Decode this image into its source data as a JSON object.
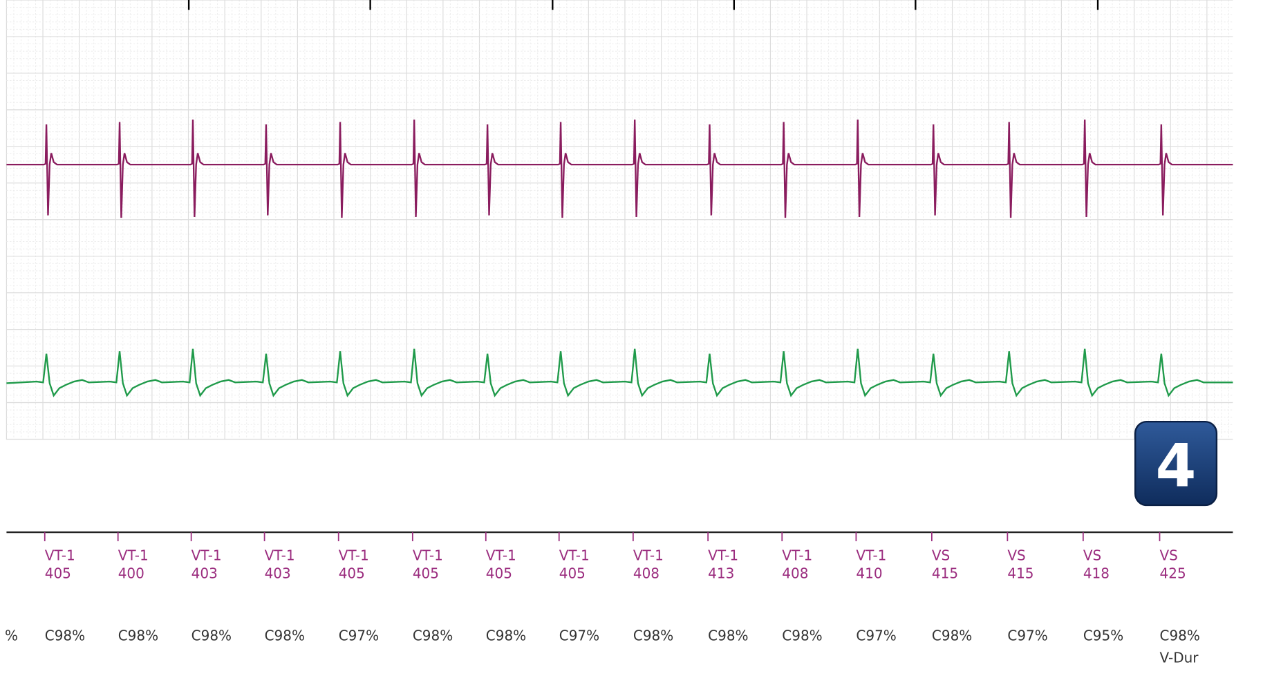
{
  "rhythm_strip": {
    "badge": "4",
    "left_fragment": "%",
    "markers": [
      {
        "label": "VT-1",
        "interval": 405,
        "detail": [
          "C98%"
        ]
      },
      {
        "label": "VT-1",
        "interval": 400,
        "detail": [
          "C98%"
        ]
      },
      {
        "label": "VT-1",
        "interval": 403,
        "detail": [
          "C98%"
        ]
      },
      {
        "label": "VT-1",
        "interval": 403,
        "detail": [
          "C98%"
        ]
      },
      {
        "label": "VT-1",
        "interval": 405,
        "detail": [
          "C97%"
        ]
      },
      {
        "label": "VT-1",
        "interval": 405,
        "detail": [
          "C98%"
        ]
      },
      {
        "label": "VT-1",
        "interval": 405,
        "detail": [
          "C98%"
        ]
      },
      {
        "label": "VT-1",
        "interval": 405,
        "detail": [
          "C97%"
        ]
      },
      {
        "label": "VT-1",
        "interval": 408,
        "detail": [
          "C98%"
        ]
      },
      {
        "label": "VT-1",
        "interval": 413,
        "detail": [
          "C98%"
        ]
      },
      {
        "label": "VT-1",
        "interval": 408,
        "detail": [
          "C98%"
        ]
      },
      {
        "label": "VT-1",
        "interval": 410,
        "detail": [
          "C97%"
        ]
      },
      {
        "label": "VS",
        "interval": 415,
        "detail": [
          "C98%"
        ]
      },
      {
        "label": "VS",
        "interval": 415,
        "detail": [
          "C97%"
        ]
      },
      {
        "label": "VS",
        "interval": 418,
        "detail": [
          "C95%"
        ]
      },
      {
        "label": "VS",
        "interval": 425,
        "detail": [
          "C98%",
          "V-Dur"
        ]
      }
    ]
  }
}
